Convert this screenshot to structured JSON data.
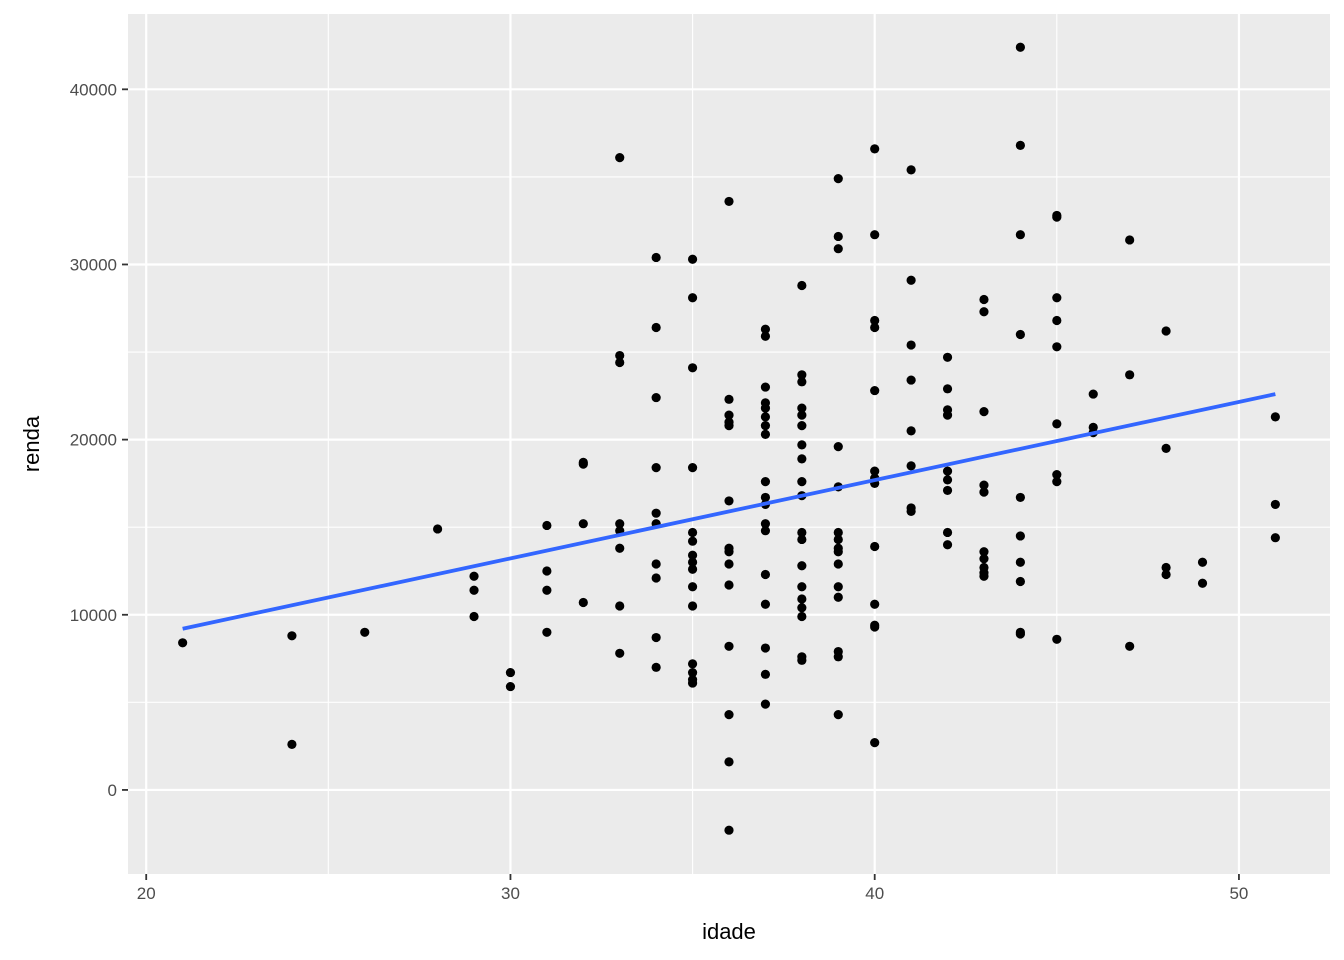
{
  "chart_data": {
    "type": "scatter",
    "title": "",
    "xlabel": "idade",
    "ylabel": "renda",
    "xlim": [
      19.5,
      52.5
    ],
    "ylim": [
      -4800,
      44300
    ],
    "grid": true,
    "x_major_ticks": [
      20,
      30,
      40,
      50
    ],
    "x_minor_ticks": [
      25,
      35,
      45
    ],
    "y_major_ticks": [
      0,
      10000,
      20000,
      30000,
      40000
    ],
    "y_minor_ticks": [
      5000,
      15000,
      25000,
      35000
    ],
    "x_tick_labels": [
      "20",
      "30",
      "40",
      "50"
    ],
    "y_tick_labels": [
      "0",
      "10000",
      "20000",
      "30000",
      "40000"
    ],
    "colors": {
      "panel": "#ebebeb",
      "grid": "#ffffff",
      "points": "#000000",
      "fit_line": "#3366ff"
    },
    "points": [
      [
        21,
        8400
      ],
      [
        24,
        8800
      ],
      [
        24,
        2600
      ],
      [
        26,
        9000
      ],
      [
        28,
        14900
      ],
      [
        29,
        12200
      ],
      [
        29,
        11400
      ],
      [
        29,
        9900
      ],
      [
        30,
        6700
      ],
      [
        30,
        5900
      ],
      [
        31,
        15100
      ],
      [
        31,
        12500
      ],
      [
        31,
        11400
      ],
      [
        31,
        9000
      ],
      [
        32,
        18700
      ],
      [
        32,
        18600
      ],
      [
        32,
        15200
      ],
      [
        32,
        10700
      ],
      [
        33,
        36100
      ],
      [
        33,
        24800
      ],
      [
        33,
        24400
      ],
      [
        33,
        15200
      ],
      [
        33,
        14800
      ],
      [
        33,
        13800
      ],
      [
        33,
        10500
      ],
      [
        33,
        7800
      ],
      [
        34,
        30400
      ],
      [
        34,
        26400
      ],
      [
        34,
        22400
      ],
      [
        34,
        18400
      ],
      [
        34,
        15800
      ],
      [
        34,
        15200
      ],
      [
        34,
        12900
      ],
      [
        34,
        12100
      ],
      [
        34,
        8700
      ],
      [
        34,
        7000
      ],
      [
        35,
        30300
      ],
      [
        35,
        28100
      ],
      [
        35,
        24100
      ],
      [
        35,
        18400
      ],
      [
        35,
        14700
      ],
      [
        35,
        14200
      ],
      [
        35,
        13400
      ],
      [
        35,
        13000
      ],
      [
        35,
        12600
      ],
      [
        35,
        11600
      ],
      [
        35,
        10500
      ],
      [
        35,
        7200
      ],
      [
        35,
        6700
      ],
      [
        35,
        6300
      ],
      [
        35,
        6100
      ],
      [
        36,
        33600
      ],
      [
        36,
        22300
      ],
      [
        36,
        21400
      ],
      [
        36,
        21000
      ],
      [
        36,
        20800
      ],
      [
        36,
        16500
      ],
      [
        36,
        13800
      ],
      [
        36,
        13600
      ],
      [
        36,
        12900
      ],
      [
        36,
        11700
      ],
      [
        36,
        8200
      ],
      [
        36,
        4300
      ],
      [
        36,
        1600
      ],
      [
        36,
        -2300
      ],
      [
        37,
        26300
      ],
      [
        37,
        25900
      ],
      [
        37,
        23000
      ],
      [
        37,
        22100
      ],
      [
        37,
        21800
      ],
      [
        37,
        21300
      ],
      [
        37,
        20800
      ],
      [
        37,
        20300
      ],
      [
        37,
        17600
      ],
      [
        37,
        16700
      ],
      [
        37,
        16300
      ],
      [
        37,
        15200
      ],
      [
        37,
        14800
      ],
      [
        37,
        12300
      ],
      [
        37,
        10600
      ],
      [
        37,
        8100
      ],
      [
        37,
        6600
      ],
      [
        37,
        4900
      ],
      [
        38,
        28800
      ],
      [
        38,
        23700
      ],
      [
        38,
        23300
      ],
      [
        38,
        21800
      ],
      [
        38,
        21400
      ],
      [
        38,
        20800
      ],
      [
        38,
        19700
      ],
      [
        38,
        18900
      ],
      [
        38,
        17600
      ],
      [
        38,
        16800
      ],
      [
        38,
        14700
      ],
      [
        38,
        14300
      ],
      [
        38,
        12800
      ],
      [
        38,
        11600
      ],
      [
        38,
        10900
      ],
      [
        38,
        10400
      ],
      [
        38,
        9900
      ],
      [
        38,
        7600
      ],
      [
        38,
        7400
      ],
      [
        39,
        34900
      ],
      [
        39,
        31600
      ],
      [
        39,
        30900
      ],
      [
        39,
        19600
      ],
      [
        39,
        17300
      ],
      [
        39,
        14700
      ],
      [
        39,
        14300
      ],
      [
        39,
        13800
      ],
      [
        39,
        13600
      ],
      [
        39,
        12900
      ],
      [
        39,
        11600
      ],
      [
        39,
        11000
      ],
      [
        39,
        7900
      ],
      [
        39,
        7600
      ],
      [
        39,
        4300
      ],
      [
        40,
        36600
      ],
      [
        40,
        31700
      ],
      [
        40,
        26800
      ],
      [
        40,
        26400
      ],
      [
        40,
        22800
      ],
      [
        40,
        18200
      ],
      [
        40,
        17800
      ],
      [
        40,
        17500
      ],
      [
        40,
        13900
      ],
      [
        40,
        10600
      ],
      [
        40,
        9400
      ],
      [
        40,
        9300
      ],
      [
        40,
        2700
      ],
      [
        41,
        35400
      ],
      [
        41,
        29100
      ],
      [
        41,
        25400
      ],
      [
        41,
        23400
      ],
      [
        41,
        20500
      ],
      [
        41,
        18500
      ],
      [
        41,
        16100
      ],
      [
        41,
        15900
      ],
      [
        42,
        24700
      ],
      [
        42,
        22900
      ],
      [
        42,
        21700
      ],
      [
        42,
        21400
      ],
      [
        42,
        18200
      ],
      [
        42,
        17700
      ],
      [
        42,
        17100
      ],
      [
        42,
        14700
      ],
      [
        42,
        14000
      ],
      [
        43,
        28000
      ],
      [
        43,
        27300
      ],
      [
        43,
        21600
      ],
      [
        43,
        17400
      ],
      [
        43,
        17000
      ],
      [
        43,
        13600
      ],
      [
        43,
        13200
      ],
      [
        43,
        12700
      ],
      [
        43,
        12400
      ],
      [
        43,
        12200
      ],
      [
        44,
        42400
      ],
      [
        44,
        36800
      ],
      [
        44,
        31700
      ],
      [
        44,
        26000
      ],
      [
        44,
        16700
      ],
      [
        44,
        14500
      ],
      [
        44,
        13000
      ],
      [
        44,
        11900
      ],
      [
        44,
        9000
      ],
      [
        44,
        8900
      ],
      [
        45,
        32800
      ],
      [
        45,
        32700
      ],
      [
        45,
        28100
      ],
      [
        45,
        26800
      ],
      [
        45,
        25300
      ],
      [
        45,
        20900
      ],
      [
        45,
        18000
      ],
      [
        45,
        17600
      ],
      [
        45,
        8600
      ],
      [
        46,
        22600
      ],
      [
        46,
        20700
      ],
      [
        46,
        20400
      ],
      [
        47,
        31400
      ],
      [
        47,
        23700
      ],
      [
        47,
        8200
      ],
      [
        48,
        26200
      ],
      [
        48,
        19500
      ],
      [
        48,
        12700
      ],
      [
        48,
        12300
      ],
      [
        49,
        13000
      ],
      [
        49,
        11800
      ],
      [
        51,
        21300
      ],
      [
        51,
        16300
      ],
      [
        51,
        14400
      ]
    ],
    "fit_line": {
      "x": [
        21,
        51
      ],
      "y": [
        9200,
        22600
      ]
    }
  }
}
